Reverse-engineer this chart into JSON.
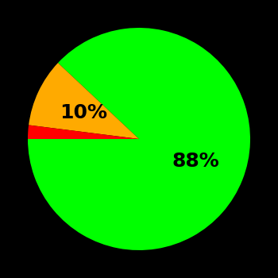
{
  "slices": [
    88,
    10,
    2
  ],
  "colors": [
    "#00ff00",
    "#ffaa00",
    "#ff0000"
  ],
  "labels": [
    "88%",
    "10%",
    ""
  ],
  "startangle": 180,
  "background_color": "#000000",
  "text_color": "#000000",
  "label_fontsize": 18,
  "label_fontweight": "bold",
  "label_radii": [
    0.55,
    0.55,
    0.55
  ]
}
